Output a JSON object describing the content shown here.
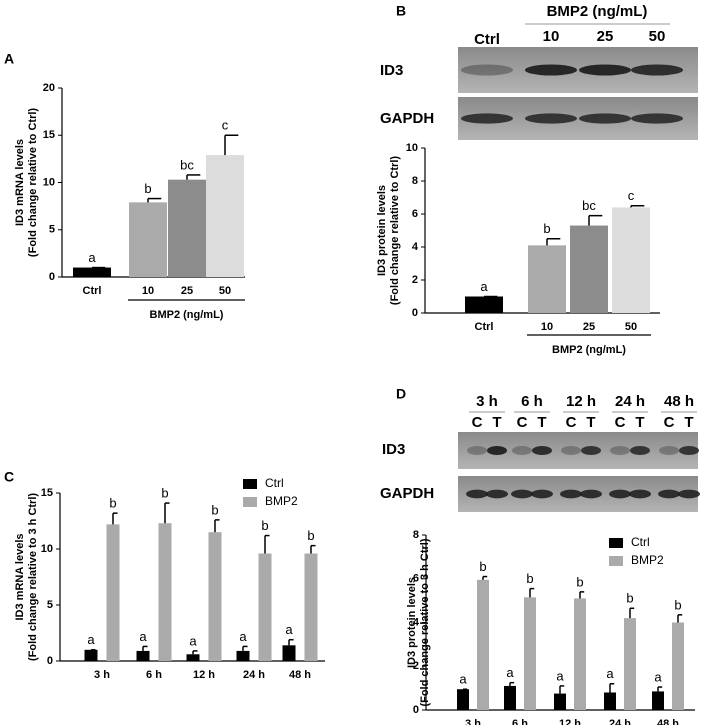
{
  "chart_data": [
    {
      "type": "bar",
      "panel": "A",
      "ylabel": [
        "ID3 mRNA levels",
        "(Fold change relative to Ctrl)"
      ],
      "categories": [
        "Ctrl",
        "10",
        "25",
        "50"
      ],
      "values": [
        1,
        7.9,
        10.3,
        12.9
      ],
      "errors": [
        0,
        0.4,
        0.5,
        2.1
      ],
      "significance": [
        "a",
        "b",
        "bc",
        "c"
      ],
      "colors": [
        "#000000",
        "#aaaaaa",
        "#8c8c8c",
        "#dcdcdc"
      ],
      "group_label": "BMP2 (ng/mL)",
      "ylim": [
        0,
        20
      ],
      "yticks": [
        0,
        5,
        10,
        15,
        20
      ]
    },
    {
      "type": "bar",
      "panel": "B",
      "ylabel": [
        "ID3 protein levels",
        "(Fold change relative to Ctrl)"
      ],
      "categories": [
        "Ctrl",
        "10",
        "25",
        "50"
      ],
      "values": [
        1,
        4.1,
        5.3,
        6.4
      ],
      "errors": [
        0,
        0.4,
        0.6,
        0.1
      ],
      "significance": [
        "a",
        "b",
        "bc",
        "c"
      ],
      "colors": [
        "#000000",
        "#aaaaaa",
        "#8c8c8c",
        "#dcdcdc"
      ],
      "group_label": "BMP2 (ng/mL)",
      "ylim": [
        0,
        10
      ],
      "yticks": [
        0,
        2,
        4,
        6,
        8,
        10
      ]
    },
    {
      "type": "grouped_bar",
      "panel": "C",
      "ylabel": [
        "ID3 mRNA levels",
        "(Fold change relative to 3 h Ctrl)"
      ],
      "categories": [
        "3 h",
        "6 h",
        "12 h",
        "24 h",
        "48 h"
      ],
      "series": [
        {
          "name": "Ctrl",
          "color": "#000000",
          "values": [
            1,
            0.9,
            0.6,
            0.9,
            1.4
          ],
          "errors": [
            0,
            0.4,
            0.3,
            0.4,
            0.5
          ],
          "significance": [
            "a",
            "a",
            "a",
            "a",
            "a"
          ]
        },
        {
          "name": "BMP2",
          "color": "#aaaaaa",
          "values": [
            12.2,
            12.3,
            11.5,
            9.6,
            9.6
          ],
          "errors": [
            1.0,
            1.8,
            1.1,
            1.6,
            0.7
          ],
          "significance": [
            "b",
            "b",
            "b",
            "b",
            "b"
          ]
        }
      ],
      "ylim": [
        0,
        15
      ],
      "yticks": [
        0,
        5,
        10,
        15
      ]
    },
    {
      "type": "grouped_bar",
      "panel": "D",
      "ylabel": [
        "ID3 protein levels",
        "(Fold change relative to 3 h Ctrl)"
      ],
      "categories": [
        "3 h",
        "6 h",
        "12 h",
        "24 h",
        "48 h"
      ],
      "series": [
        {
          "name": "Ctrl",
          "color": "#000000",
          "values": [
            0.95,
            1.1,
            0.75,
            0.8,
            0.85
          ],
          "errors": [
            0,
            0.15,
            0.35,
            0.4,
            0.2
          ],
          "significance": [
            "a",
            "a",
            "a",
            "a",
            "a"
          ]
        },
        {
          "name": "BMP2",
          "color": "#aaaaaa",
          "values": [
            5.95,
            5.15,
            5.1,
            4.2,
            4.0
          ],
          "errors": [
            0.15,
            0.4,
            0.3,
            0.45,
            0.35
          ],
          "significance": [
            "b",
            "b",
            "b",
            "b",
            "b"
          ]
        }
      ],
      "ylim": [
        0,
        8
      ],
      "yticks": [
        0,
        2,
        4,
        6,
        8
      ]
    }
  ],
  "blots": [
    {
      "header": "BMP2 (ng/mL)",
      "lanes": [
        "Ctrl",
        "10",
        "25",
        "50"
      ],
      "rows": [
        "ID3",
        "GAPDH"
      ]
    },
    {
      "times": [
        "3 h",
        "6 h",
        "12 h",
        "24 h",
        "48 h"
      ],
      "lanes": [
        "C",
        "T"
      ],
      "rows": [
        "ID3",
        "GAPDH"
      ]
    }
  ]
}
